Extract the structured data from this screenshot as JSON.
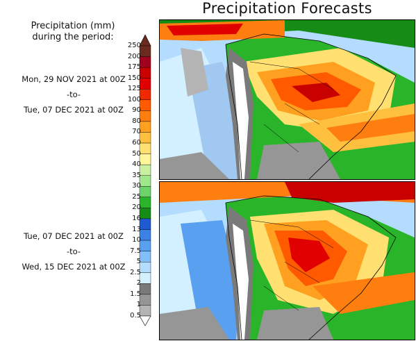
{
  "title": "Precipitation Forecasts",
  "legend": {
    "title_line1": "Precipitation (mm)",
    "title_line2": "during the period:",
    "levels": [
      "250",
      "200",
      "175",
      "150",
      "125",
      "100",
      "90",
      "80",
      "70",
      "60",
      "50",
      "40",
      "35",
      "30",
      "25",
      "20",
      "16",
      "13",
      "10",
      "7.5",
      "5",
      "2.5",
      "2",
      "1.5",
      "1",
      "0.5"
    ],
    "colors": [
      "#6b2a1e",
      "#a0001e",
      "#c80000",
      "#e00000",
      "#f02a00",
      "#ff5a00",
      "#ff7e10",
      "#ffa020",
      "#ffc040",
      "#ffe070",
      "#fff59a",
      "#c8f0a0",
      "#a0e68c",
      "#6cd26c",
      "#2ab42a",
      "#168c16",
      "#1f5ad2",
      "#3c82e6",
      "#5aa0f0",
      "#82befa",
      "#b4dcff",
      "#d2f0ff",
      "#7a7a7a",
      "#969696",
      "#b4b4b4",
      "#d2d2d2"
    ]
  },
  "periods": [
    {
      "start": "Mon, 29 NOV 2021 at 00Z",
      "sep": "-to-",
      "end": "Tue, 07 DEC 2021 at 00Z"
    },
    {
      "start": "Tue, 07 DEC 2021 at 00Z",
      "sep": "-to-",
      "end": "Wed, 15 DEC 2021 at 00Z"
    }
  ]
}
